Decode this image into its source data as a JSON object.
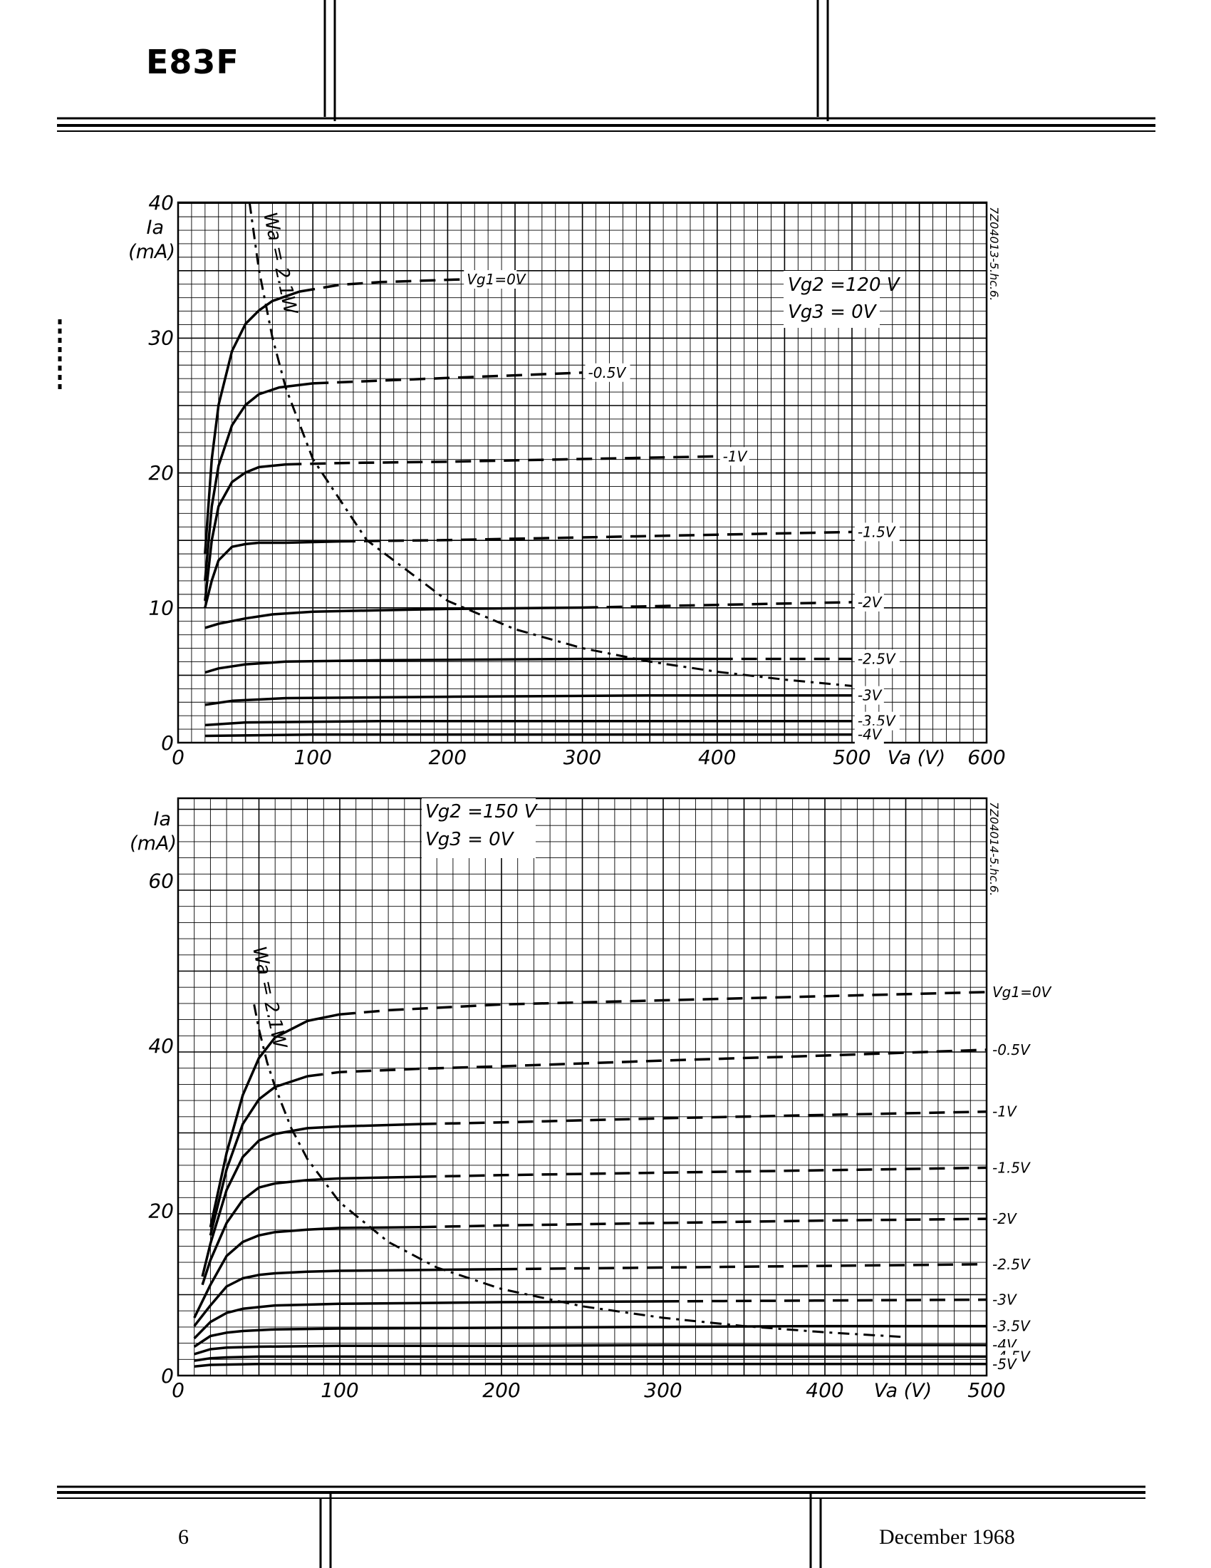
{
  "header": {
    "title": "E83F"
  },
  "footer": {
    "page_number": "6",
    "date": "December 1968"
  },
  "chart_data": [
    {
      "type": "line",
      "title": "",
      "conditions": [
        "Vg2 =120 V",
        "Vg3 = 0V"
      ],
      "xlabel": "Va (V)",
      "ylabel_symbol": "Ia",
      "ylabel_unit": "(mA)",
      "xlim": [
        0,
        600
      ],
      "ylim": [
        0,
        40
      ],
      "x_ticks": [
        0,
        100,
        200,
        300,
        400,
        500,
        600
      ],
      "x_tick_labels": [
        "0",
        "100",
        "200",
        "300",
        "400",
        "500",
        "Va (V)",
        "600"
      ],
      "y_ticks": [
        0,
        10,
        20,
        30,
        40
      ],
      "drawing_code": "7Z04013-5.hc.6.",
      "grid": true,
      "power_curve": {
        "label": "Wa = 2.1W",
        "x": [
          53,
          60,
          70,
          80,
          100,
          140,
          200,
          250,
          300,
          350,
          400,
          450,
          500
        ],
        "y": [
          40,
          35,
          30,
          26.25,
          21,
          15,
          10.5,
          8.4,
          7,
          6,
          5.25,
          4.67,
          4.2
        ]
      },
      "series": [
        {
          "name": "Vg1=0V",
          "x": [
            20,
            25,
            30,
            40,
            50,
            60,
            70,
            90,
            120,
            150,
            180,
            210
          ],
          "y": [
            14,
            21,
            25,
            29,
            31,
            32,
            32.7,
            33.4,
            33.9,
            34.1,
            34.2,
            34.3
          ]
        },
        {
          "name": "-0.5V",
          "x": [
            20,
            25,
            30,
            40,
            50,
            60,
            75,
            100,
            150,
            200,
            250,
            300
          ],
          "y": [
            12,
            17.5,
            20.5,
            23.5,
            25,
            25.8,
            26.3,
            26.6,
            26.8,
            27,
            27.2,
            27.4
          ]
        },
        {
          "name": "-1V",
          "x": [
            20,
            25,
            30,
            40,
            50,
            60,
            80,
            120,
            200,
            300,
            400
          ],
          "y": [
            10.5,
            15,
            17.5,
            19.3,
            20,
            20.4,
            20.6,
            20.7,
            20.8,
            21,
            21.2
          ]
        },
        {
          "name": "-1.5V",
          "x": [
            20,
            25,
            30,
            40,
            50,
            60,
            80,
            120,
            200,
            300,
            400,
            500
          ],
          "y": [
            10,
            12,
            13.5,
            14.5,
            14.7,
            14.8,
            14.8,
            14.9,
            15,
            15.2,
            15.4,
            15.6
          ]
        },
        {
          "name": "-2V",
          "x": [
            20,
            30,
            50,
            70,
            100,
            150,
            200,
            300,
            400,
            500
          ],
          "y": [
            8.5,
            8.8,
            9.2,
            9.5,
            9.7,
            9.8,
            9.9,
            10,
            10.2,
            10.4
          ]
        },
        {
          "name": "-2.5V",
          "x": [
            20,
            30,
            50,
            80,
            150,
            300,
            400,
            500
          ],
          "y": [
            5.2,
            5.5,
            5.8,
            6,
            6.1,
            6.2,
            6.2,
            6.2
          ]
        },
        {
          "name": "-3V",
          "x": [
            20,
            40,
            80,
            200,
            350,
            500
          ],
          "y": [
            2.8,
            3.1,
            3.3,
            3.4,
            3.5,
            3.5
          ]
        },
        {
          "name": "-3.5V",
          "x": [
            20,
            50,
            150,
            300,
            500
          ],
          "y": [
            1.3,
            1.5,
            1.6,
            1.6,
            1.6
          ]
        },
        {
          "name": "-4V",
          "x": [
            20,
            100,
            300,
            500
          ],
          "y": [
            0.5,
            0.6,
            0.6,
            0.6
          ]
        }
      ]
    },
    {
      "type": "line",
      "title": "",
      "conditions": [
        "Vg2 =150 V",
        "Vg3 = 0V"
      ],
      "xlabel": "Va (V)",
      "ylabel_symbol": "Ia",
      "ylabel_unit": "(mA)",
      "xlim": [
        0,
        500
      ],
      "ylim": [
        0,
        70
      ],
      "x_ticks": [
        0,
        100,
        200,
        300,
        400,
        500
      ],
      "x_tick_labels": [
        "0",
        "100",
        "200",
        "300",
        "400",
        "Va (V)",
        "500"
      ],
      "y_ticks": [
        0,
        20,
        40,
        60
      ],
      "drawing_code": "7Z04014-5.hc.6.",
      "grid": true,
      "power_curve": {
        "label": "Wa = 2.1W",
        "x": [
          47,
          50,
          55,
          60,
          70,
          80,
          100,
          130,
          160,
          200,
          250,
          300,
          350,
          400,
          450
        ],
        "y": [
          45,
          42,
          38,
          35,
          30,
          26.25,
          21,
          16.2,
          13.1,
          10.5,
          8.4,
          7,
          6,
          5.25,
          4.67
        ]
      },
      "series": [
        {
          "name": "Vg1=0V",
          "x": [
            20,
            30,
            40,
            50,
            60,
            80,
            100,
            130,
            200,
            300,
            400,
            500
          ],
          "y": [
            18,
            27,
            34,
            38.5,
            41,
            43,
            43.8,
            44.3,
            45,
            45.5,
            46,
            46.5
          ]
        },
        {
          "name": "-0.5V",
          "x": [
            20,
            30,
            40,
            50,
            60,
            80,
            100,
            150,
            200,
            300,
            400,
            500
          ],
          "y": [
            17,
            25,
            30.5,
            33.5,
            35,
            36.3,
            36.8,
            37.2,
            37.5,
            38.2,
            38.8,
            39.5
          ]
        },
        {
          "name": "-1V",
          "x": [
            15,
            20,
            30,
            40,
            50,
            60,
            80,
            100,
            150,
            200,
            300,
            400,
            500
          ],
          "y": [
            12,
            16,
            22.5,
            26.5,
            28.5,
            29.3,
            30,
            30.2,
            30.5,
            30.7,
            31.2,
            31.6,
            32
          ]
        },
        {
          "name": "-1.5V",
          "x": [
            15,
            20,
            30,
            40,
            50,
            60,
            80,
            100,
            150,
            200,
            300,
            400,
            500
          ],
          "y": [
            11,
            14,
            18.5,
            21.3,
            22.8,
            23.3,
            23.7,
            23.9,
            24.1,
            24.3,
            24.6,
            24.9,
            25.2
          ]
        },
        {
          "name": "-2V",
          "x": [
            10,
            20,
            30,
            40,
            50,
            60,
            80,
            100,
            150,
            200,
            300,
            400,
            500
          ],
          "y": [
            7,
            11,
            14.5,
            16.2,
            17,
            17.4,
            17.7,
            17.9,
            18,
            18.2,
            18.5,
            18.8,
            19
          ]
        },
        {
          "name": "-2.5V",
          "x": [
            10,
            20,
            30,
            40,
            50,
            60,
            80,
            100,
            150,
            200,
            300,
            400,
            500
          ],
          "y": [
            6,
            8.5,
            10.8,
            11.8,
            12.2,
            12.4,
            12.6,
            12.7,
            12.8,
            12.9,
            13.1,
            13.3,
            13.5
          ]
        },
        {
          "name": "-3V",
          "x": [
            10,
            20,
            30,
            40,
            60,
            80,
            100,
            150,
            200,
            300,
            400,
            500
          ],
          "y": [
            4.5,
            6.5,
            7.6,
            8.1,
            8.5,
            8.6,
            8.7,
            8.8,
            8.9,
            9,
            9.1,
            9.2
          ]
        },
        {
          "name": "-3.5V",
          "x": [
            10,
            20,
            30,
            40,
            60,
            100,
            200,
            300,
            400,
            500
          ],
          "y": [
            3.5,
            4.8,
            5.2,
            5.4,
            5.6,
            5.7,
            5.8,
            5.9,
            6,
            6
          ]
        },
        {
          "name": "-4V",
          "x": [
            10,
            20,
            30,
            50,
            100,
            200,
            300,
            400,
            500
          ],
          "y": [
            2.6,
            3.2,
            3.4,
            3.5,
            3.6,
            3.6,
            3.7,
            3.7,
            3.7
          ]
        },
        {
          "name": "-4.5V",
          "x": [
            10,
            20,
            30,
            50,
            100,
            200,
            500
          ],
          "y": [
            1.8,
            2.1,
            2.2,
            2.3,
            2.3,
            2.3,
            2.3
          ]
        },
        {
          "name": "-5V",
          "x": [
            10,
            20,
            50,
            100,
            500
          ],
          "y": [
            1.1,
            1.3,
            1.4,
            1.4,
            1.4
          ]
        }
      ]
    }
  ]
}
